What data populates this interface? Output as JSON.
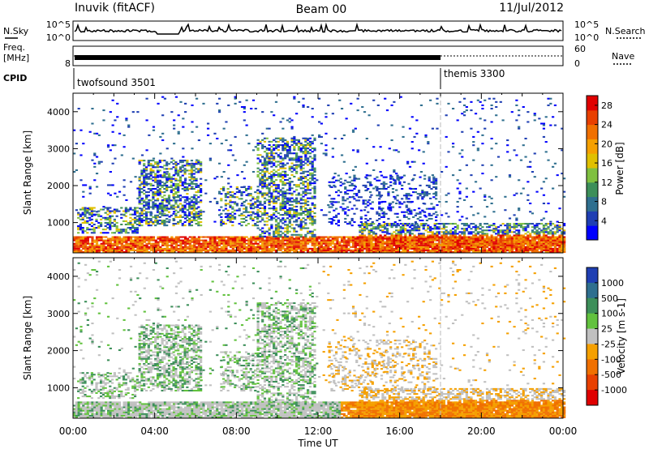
{
  "header": {
    "station": "Inuvik (fitACF)",
    "beam": "Beam 00",
    "date": "11/Jul/2012"
  },
  "top_panels": {
    "nsky_label": "N.Sky",
    "nsky_ticks": [
      "10^5",
      "10^0"
    ],
    "nsearch_label": "N.Search",
    "nsearch_ticks": [
      "10^5",
      "10^0"
    ],
    "freq_label": "Freq.",
    "freq_unit": "[MHz]",
    "freq_ticks": [
      "",
      "8"
    ],
    "nave_label": "Nave",
    "nave_ticks": [
      "60",
      "0"
    ],
    "cpid_label": "CPID",
    "cpid_segments": [
      {
        "name": "twofsound 3501",
        "start_hour": 0,
        "end_hour": 18.08
      },
      {
        "name": "themis 3300",
        "start_hour": 18.08,
        "end_hour": 24
      }
    ],
    "nave_switch_hour": 18.08
  },
  "chart_data": [
    {
      "type": "heatmap",
      "title": "",
      "xlabel": "",
      "ylabel": "Slant Range [km]",
      "x_range_hours": [
        0,
        24
      ],
      "ylim": [
        180,
        4500
      ],
      "yticks": [
        "1000",
        "2000",
        "3000",
        "4000"
      ],
      "colorbar": {
        "label": "Power [dB]",
        "ticks": [
          "4",
          "8",
          "12",
          "16",
          "20",
          "24",
          "28"
        ],
        "range": [
          0,
          30
        ],
        "colors": [
          "#0000ff",
          "#1f3fb3",
          "#2f6f8f",
          "#3d8f5a",
          "#7fc040",
          "#e0c000",
          "#f5a000",
          "#f07000",
          "#e84000",
          "#e00000"
        ]
      }
    },
    {
      "type": "heatmap",
      "title": "",
      "xlabel": "Time UT",
      "ylabel": "Slant Range [km]",
      "x_range_hours": [
        0,
        24
      ],
      "xticks": [
        "00:00",
        "04:00",
        "08:00",
        "12:00",
        "16:00",
        "20:00",
        "00:00"
      ],
      "ylim": [
        180,
        4500
      ],
      "yticks": [
        "1000",
        "2000",
        "3000",
        "4000"
      ],
      "colorbar": {
        "label": "Velocity [m s-1]",
        "ticks": [
          "1000",
          "500",
          "100",
          "25",
          "-25",
          "-100",
          "-500",
          "-1000"
        ],
        "colors": [
          "#1f3fb3",
          "#2f6f8f",
          "#3d8f5a",
          "#62c23e",
          "#c0c0c0",
          "#f5a000",
          "#f07000",
          "#e84000",
          "#e00000"
        ]
      }
    }
  ]
}
